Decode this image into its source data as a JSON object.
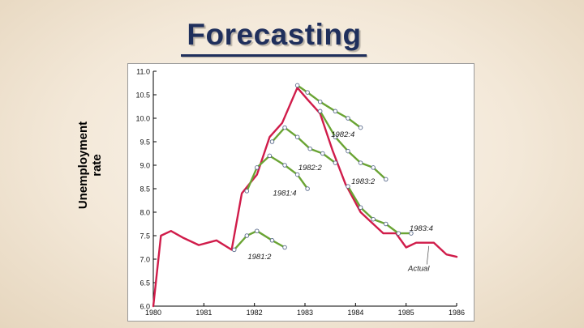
{
  "slide": {
    "title": "Forecasting",
    "ylabel_line1": "Unemployment",
    "ylabel_line2": "rate"
  },
  "colors": {
    "actual": "#d01c4a",
    "forecast": "#6aa434",
    "marker_edge": "#5a6b8c",
    "title": "#1f2f5c"
  },
  "chart_data": {
    "type": "line",
    "title": "",
    "xlabel": "",
    "ylabel": "Unemployment rate",
    "xlim": [
      1980,
      1986
    ],
    "ylim": [
      6.0,
      11.0
    ],
    "xticks": [
      "1980",
      "1981",
      "1982",
      "1983",
      "1984",
      "1985",
      "1986"
    ],
    "yticks": [
      "6.0",
      "6.5",
      "7.0",
      "7.5",
      "8.0",
      "8.5",
      "9.0",
      "9.5",
      "10.0",
      "10.5",
      "11.0"
    ],
    "series": [
      {
        "name": "Actual",
        "kind": "actual",
        "x": [
          1980.0,
          1980.15,
          1980.35,
          1980.6,
          1980.9,
          1981.25,
          1981.55,
          1981.75,
          1982.05,
          1982.3,
          1982.55,
          1982.85,
          1983.05,
          1983.3,
          1983.55,
          1983.8,
          1984.1,
          1984.3,
          1984.55,
          1984.8,
          1985.0,
          1985.2,
          1985.55,
          1985.8,
          1986.0
        ],
        "y": [
          6.0,
          7.5,
          7.6,
          7.45,
          7.3,
          7.4,
          7.2,
          8.4,
          8.8,
          9.6,
          9.9,
          10.65,
          10.4,
          10.1,
          9.3,
          8.6,
          8.0,
          7.8,
          7.55,
          7.55,
          7.25,
          7.35,
          7.35,
          7.1,
          7.05
        ]
      },
      {
        "name": "1981:2",
        "kind": "forecast",
        "x": [
          1981.6,
          1981.85,
          1982.05,
          1982.35,
          1982.6
        ],
        "y": [
          7.2,
          7.5,
          7.6,
          7.4,
          7.25
        ]
      },
      {
        "name": "1981:4",
        "kind": "forecast",
        "x": [
          1981.85,
          1982.05,
          1982.3,
          1982.6,
          1982.85,
          1983.05
        ],
        "y": [
          8.45,
          8.95,
          9.2,
          9.0,
          8.8,
          8.5
        ]
      },
      {
        "name": "1982:2",
        "kind": "forecast",
        "x": [
          1982.35,
          1982.6,
          1982.85,
          1983.1,
          1983.35,
          1983.6
        ],
        "y": [
          9.5,
          9.8,
          9.6,
          9.35,
          9.25,
          9.05
        ]
      },
      {
        "name": "1982:4",
        "kind": "forecast",
        "x": [
          1982.85,
          1983.05,
          1983.3,
          1983.6,
          1983.85,
          1984.1
        ],
        "y": [
          10.7,
          10.55,
          10.35,
          10.15,
          10.0,
          9.8
        ]
      },
      {
        "name": "1983:2",
        "kind": "forecast",
        "x": [
          1983.3,
          1983.6,
          1983.85,
          1984.1,
          1984.35,
          1984.6
        ],
        "y": [
          10.15,
          9.6,
          9.3,
          9.05,
          8.95,
          8.7
        ]
      },
      {
        "name": "1983:4",
        "kind": "forecast",
        "x": [
          1983.85,
          1984.1,
          1984.35,
          1984.6,
          1984.85,
          1985.1
        ],
        "y": [
          8.55,
          8.1,
          7.85,
          7.75,
          7.55,
          7.55
        ]
      }
    ],
    "annotations": [
      {
        "text": "1981:2",
        "x": 1982.1,
        "y": 7.0
      },
      {
        "text": "1981:4",
        "x": 1982.6,
        "y": 8.35
      },
      {
        "text": "1982:2",
        "x": 1983.1,
        "y": 8.9
      },
      {
        "text": "1982:4",
        "x": 1983.75,
        "y": 9.6
      },
      {
        "text": "1983:2",
        "x": 1984.15,
        "y": 8.6
      },
      {
        "text": "1983:4",
        "x": 1985.3,
        "y": 7.6
      },
      {
        "text": "Actual",
        "x": 1985.25,
        "y": 6.75
      }
    ],
    "grid": false,
    "legend": "none"
  }
}
